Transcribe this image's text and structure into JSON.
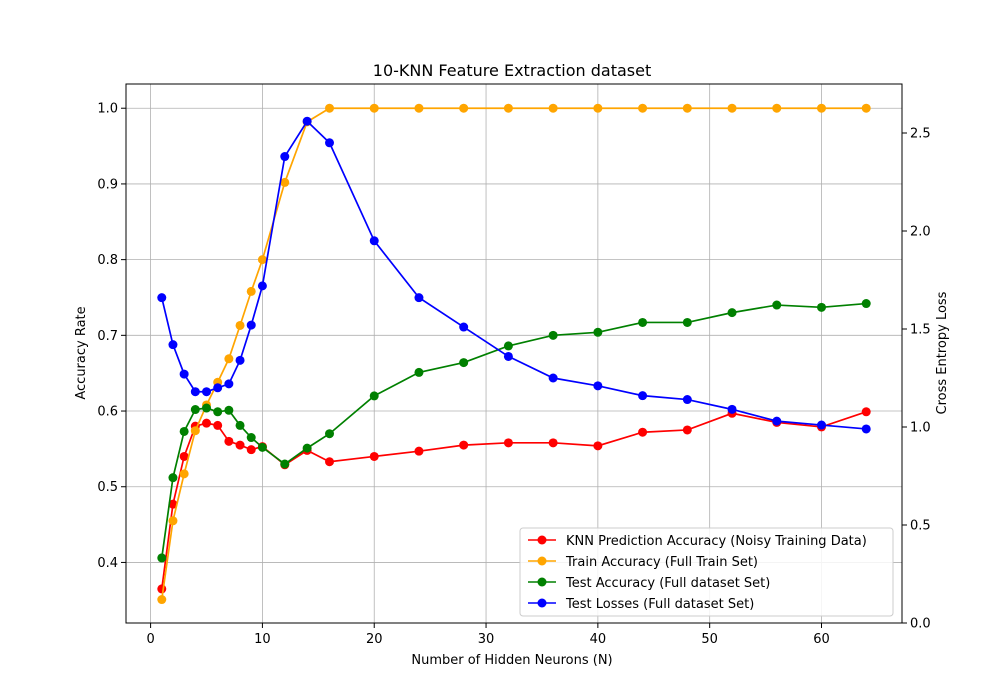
{
  "chart_data": {
    "type": "line",
    "title": "10-KNN Feature Extraction dataset",
    "xlabel": "Number of Hidden Neurons (N)",
    "ylabel": "Accuracy Rate",
    "y2label": "Cross Entropy Loss",
    "xlim": [
      -2.2,
      67.2
    ],
    "ylim": [
      0.32,
      1.032
    ],
    "y2lim": [
      0,
      2.75
    ],
    "xticks": [
      0,
      10,
      20,
      30,
      40,
      50,
      60
    ],
    "yticks": [
      0.4,
      0.5,
      0.6,
      0.7,
      0.8,
      0.9,
      1.0
    ],
    "y2ticks": [
      0.0,
      0.5,
      1.0,
      1.5,
      2.0,
      2.5
    ],
    "grid": true,
    "legend_position": "lower-right",
    "x": [
      1,
      2,
      3,
      4,
      5,
      6,
      7,
      8,
      9,
      10,
      12,
      14,
      16,
      20,
      24,
      28,
      32,
      36,
      40,
      44,
      48,
      52,
      56,
      60,
      64
    ],
    "series": [
      {
        "name": "KNN Prediction Accuracy (Noisy Training Data)",
        "color": "#ff0000",
        "axis": "left",
        "values": [
          0.365,
          0.477,
          0.54,
          0.58,
          0.584,
          0.581,
          0.56,
          0.555,
          0.549,
          0.553,
          0.529,
          0.548,
          0.533,
          0.54,
          0.547,
          0.555,
          0.558,
          0.558,
          0.554,
          0.572,
          0.575,
          0.597,
          0.585,
          0.579,
          0.599
        ]
      },
      {
        "name": "Train Accuracy (Full Train Set)",
        "color": "#ffa500",
        "axis": "left",
        "values": [
          0.351,
          0.455,
          0.517,
          0.574,
          0.608,
          0.638,
          0.669,
          0.713,
          0.758,
          0.8,
          0.902,
          0.982,
          1.0,
          1.0,
          1.0,
          1.0,
          1.0,
          1.0,
          1.0,
          1.0,
          1.0,
          1.0,
          1.0,
          1.0,
          1.0
        ]
      },
      {
        "name": "Test Accuracy (Full dataset Set)",
        "color": "#008000",
        "axis": "left",
        "values": [
          0.406,
          0.512,
          0.573,
          0.602,
          0.604,
          0.599,
          0.601,
          0.581,
          0.565,
          0.552,
          0.53,
          0.551,
          0.57,
          0.62,
          0.651,
          0.664,
          0.686,
          0.7,
          0.704,
          0.717,
          0.717,
          0.73,
          0.74,
          0.737,
          0.742
        ]
      },
      {
        "name": "Test Losses (Full dataset Set)",
        "color": "#0000ff",
        "axis": "right",
        "values": [
          1.66,
          1.42,
          1.27,
          1.18,
          1.18,
          1.2,
          1.22,
          1.34,
          1.52,
          1.72,
          2.38,
          2.56,
          2.45,
          1.95,
          1.66,
          1.51,
          1.36,
          1.25,
          1.21,
          1.16,
          1.14,
          1.09,
          1.03,
          1.01,
          0.99
        ]
      }
    ]
  }
}
